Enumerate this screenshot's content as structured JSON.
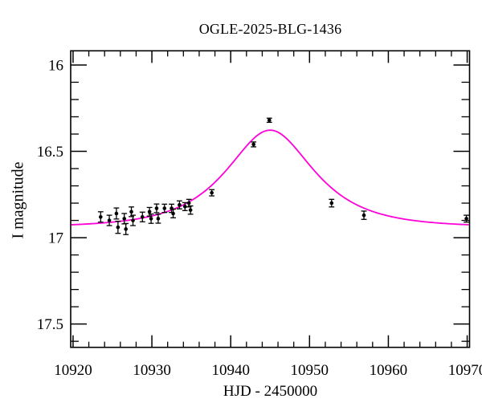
{
  "chart_data": {
    "type": "scatter",
    "title": "OGLE-2025-BLG-1436",
    "xlabel": "HJD - 2450000",
    "ylabel": "I magnitude",
    "xlim": [
      10919.7,
      10970.3
    ],
    "ylim": [
      15.918,
      17.635
    ],
    "y_axis_inverted_magnitude": true,
    "grid": false,
    "x_major_ticks": [
      10920,
      10930,
      10940,
      10950,
      10960,
      10970
    ],
    "x_minor_step": 2,
    "y_major_ticks": [
      16,
      16.5,
      17,
      17.5
    ],
    "y_minor_step": 0.1,
    "model_curve": {
      "name": "microlensing-model-fit",
      "type": "paczynski",
      "color": "#ff00d8",
      "baseline_mag": 16.94,
      "t0": 10945.0,
      "tE": 8.1,
      "u0": 0.7
    },
    "series": [
      {
        "name": "OGLE I-band photometry",
        "marker": "filled-circle",
        "color": "#000000",
        "points": [
          {
            "t": 10923.5,
            "mag": 16.88,
            "err": 0.03
          },
          {
            "t": 10924.6,
            "mag": 16.9,
            "err": 0.03
          },
          {
            "t": 10925.5,
            "mag": 16.86,
            "err": 0.032
          },
          {
            "t": 10925.7,
            "mag": 16.94,
            "err": 0.035
          },
          {
            "t": 10926.5,
            "mag": 16.89,
            "err": 0.03
          },
          {
            "t": 10926.7,
            "mag": 16.95,
            "err": 0.032
          },
          {
            "t": 10927.4,
            "mag": 16.85,
            "err": 0.028
          },
          {
            "t": 10927.6,
            "mag": 16.9,
            "err": 0.03
          },
          {
            "t": 10928.8,
            "mag": 16.88,
            "err": 0.028
          },
          {
            "t": 10929.7,
            "mag": 16.85,
            "err": 0.025
          },
          {
            "t": 10929.9,
            "mag": 16.89,
            "err": 0.027
          },
          {
            "t": 10930.6,
            "mag": 16.83,
            "err": 0.025
          },
          {
            "t": 10930.8,
            "mag": 16.89,
            "err": 0.026
          },
          {
            "t": 10931.6,
            "mag": 16.83,
            "err": 0.024
          },
          {
            "t": 10932.5,
            "mag": 16.83,
            "err": 0.024
          },
          {
            "t": 10932.7,
            "mag": 16.86,
            "err": 0.025
          },
          {
            "t": 10933.5,
            "mag": 16.81,
            "err": 0.023
          },
          {
            "t": 10934.2,
            "mag": 16.82,
            "err": 0.023
          },
          {
            "t": 10934.7,
            "mag": 16.8,
            "err": 0.022
          },
          {
            "t": 10934.9,
            "mag": 16.84,
            "err": 0.024
          },
          {
            "t": 10937.6,
            "mag": 16.74,
            "err": 0.018
          },
          {
            "t": 10942.9,
            "mag": 16.46,
            "err": 0.014
          },
          {
            "t": 10944.9,
            "mag": 16.32,
            "err": 0.012
          },
          {
            "t": 10952.8,
            "mag": 16.8,
            "err": 0.022
          },
          {
            "t": 10956.9,
            "mag": 16.87,
            "err": 0.024
          },
          {
            "t": 10969.9,
            "mag": 16.89,
            "err": 0.02
          }
        ]
      }
    ]
  }
}
